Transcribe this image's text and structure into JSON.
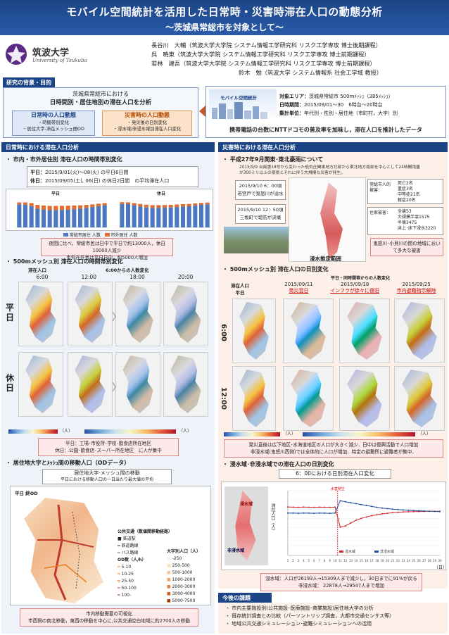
{
  "title": "モバイル空間統計を活用した日常時・災害時滞在人口の動態分析",
  "subtitle": "〜茨城県常総市を対象として〜",
  "logo": {
    "name": "筑波大学",
    "en": "University of Tsukuba"
  },
  "authors": [
    "長谷川　大輔（筑波大学大学院 システム情報工学研究科 リスク工学専攻 博士後期課程）",
    "呉　暁東（筑波大学大学院 システム情報工学研究科 リスク工学専攻 博士前期課程）",
    "若林　建吾（筑波大学大学院 システム情報工学研究科 リスク工学専攻 博士前期課程）",
    "鈴木　勉（筑波大学 システム情報系 社会工学域 教授）"
  ],
  "background": {
    "label": "研究の背景・目的",
    "line1": "茨城県常総市における",
    "line2": "日時間別・居住地別の滞在人口を分析",
    "normal_title": "日常時の人口動態",
    "normal_items": [
      "・時間帯別変化",
      "・居住大字-滞在メッシュ間OD"
    ],
    "disaster_title": "災害時の人口動態",
    "disaster_items": [
      "・発災後の日別変化",
      "・浸水域/非浸水域別滞在人口変化"
    ],
    "app_name": "モバイル空間統計",
    "target_label": "対象エリア：",
    "target_value": "茨城県常総市 500mﾒｯｼｭ（385ﾒｯｼｭ）",
    "period_label": "日時期間：",
    "period_value": "2015/09/01〜30　6時台〜20時台",
    "unit_label": "集計単位：",
    "unit_value": "年代別・性別・居住地（市町村，大字）別",
    "summary": "携帯電話の台数にNTTドコモの普及率を加味し，滞在人口を推計したデータ"
  },
  "left": {
    "section": "日常時における滞在人口分析",
    "b1": "市内・市外居住別 滞在人口の時間帯別変化",
    "weekday_label": "平日：",
    "weekday_value": "2015/9/01(火)〜08(火) の平日6日間",
    "holiday_label": "休日：",
    "holiday_value": "2015/09/05(土), 06(日) の休日2日間",
    "avg": "の平均滞在人口",
    "chart_title_weekday": "平日",
    "chart_title_holiday": "休日",
    "legend_city": "常総市居住 人数",
    "legend_outside": "市外居住 人数",
    "note1a": "夜間に比べ，常総市民は日中で平日で約13000人，休日10000人減少",
    "note1b": "市外在住者は平日日中，約5000人増加",
    "b2": "500mメッシュ別 滞在人口の時間帯別変化",
    "b2_sub_left": "滞在人口",
    "b2_sub_right": "6:00からの人数変化",
    "times": [
      "6:00",
      "12:00",
      "18:00",
      "20:00"
    ],
    "row_weekday": "平日",
    "row_holiday": "休日",
    "unit_people": "（人）",
    "note2a": "平日：工場･市役所･学校･飲食店所在地区",
    "note2b": "休日：公園･飲食店･スーパー所在地区　に人が集中",
    "b3": "居住地大字とﾒｯｼｭ間の移動人口（ODデータ）",
    "b3_box1": "居住地大字-メッシュ間の移動",
    "b3_box2": "平日における移動人口の一日当たり最大値の平均",
    "od_label": "平日 終OD",
    "od_legend_title": "公共交通（数値間移動経路）",
    "od_rail": "鉄道駅",
    "od_line": "鉄道路線",
    "od_bus": "バス路線",
    "od_qty": "OD数（人/h）",
    "od_bins": [
      "5-10",
      "10-25",
      "25-50",
      "50-100",
      "100-"
    ],
    "pop_title": "大字別人口（人）",
    "pop_bins": [
      "-250",
      "250-500",
      "500-1000",
      "1000-2000",
      "2000-3000",
      "3000-4000",
      "5000-7500"
    ],
    "note3a": "市内移動需要の可視化",
    "note3b": "市西側の南北移動，東西の移動を中心に,公共交通空白地域に約2700人の移動"
  },
  "right": {
    "section": "災害時における滞在人口分析",
    "b1": "平成27年9月関東･東北豪雨について",
    "b1_desc": "2015/9/9 台風第18号から変わった低気圧関東地方北部から東北地方南部を中心として24時間雨量が300ミリ以上の豪雨とそれに伴う大規模な災害が発生。",
    "t1": "2015/9/10 6：00頃",
    "t1b": "若宮戸で鬼怒川が溢水",
    "t2": "2015/9/10 12：50頃",
    "t2b": "三坂町で堤防が決壊",
    "damage_label1": "常総市人的被害：",
    "damage1": [
      "死亡2名",
      "重症3名",
      "中等症21名",
      "軽症20名"
    ],
    "damage_label2": "住家被害：",
    "damage2": [
      "全壊53",
      "大規模半壊1575",
      "半壊3475",
      "床上･床下浸水3220"
    ],
    "damage_note": "鬼怒川･小貝川の間の地域において多大な被害",
    "flood_label": "浸水推定範囲",
    "b2": "500mメッシュ別 滞在人口の日別変化",
    "b2_sub": "平日・同時間帯からの人数変化",
    "b2_left": "滞在人口",
    "b2_left2": "平日",
    "days": [
      "2015/09/11",
      "2015/09/18",
      "2015/09/25"
    ],
    "day_desc": [
      "発災翌日",
      "インフラが徐々に復旧",
      "市内避難指示解除"
    ],
    "rows": [
      "6:00",
      "12:00"
    ],
    "unit_people": "（人）",
    "note2a": "発災直後は広下地区･水海道地区の人口が大きく減少．日中は復興活動で人口増加",
    "note2b": "非浸水域(鬼怒川西側)では全体的に人口が増加．特定の避難所に避難者が集中．",
    "b3": "浸水域･非浸水域での滞在人口の日別変化",
    "b3_box": "6：00における日別滞在人口変化",
    "flood_in": "浸水域",
    "flood_out": "非浸水域",
    "ylabel": "滞在人口（人）",
    "xlabel": "（日）",
    "event": "水害発生",
    "series_names": [
      "浸水域",
      "非浸水域"
    ],
    "note3a": "浸水域：人口が26193人→15309人まで減少し，30日までに91%が戻る",
    "note3b": "非浸水域： 22878人→29547人まで増加",
    "future_title": "今後の課題",
    "future": [
      "市内主要施設別(公共施設･医療施設･商業施設)居住地大字の分析",
      "既存統計調査との比較（パーソントリップ調査，大都市交通センサス等）",
      "地域公共交通シミュレーション･避難シミュレーションへの活用"
    ]
  },
  "chart_data": [
    {
      "type": "bar",
      "title": "平日",
      "series": [
        {
          "name": "常総市居住 人数",
          "values": [
            52000,
            51500,
            48000,
            42000,
            40000,
            39000,
            39000,
            39500,
            40000,
            41000,
            42000,
            44000,
            46000,
            48000,
            50000
          ]
        },
        {
          "name": "市外居住 人数",
          "values": [
            4500,
            5000,
            7000,
            9000,
            9500,
            9500,
            9500,
            9300,
            9000,
            8500,
            8000,
            7000,
            6000,
            5500,
            5000
          ]
        }
      ],
      "ylim": [
        0,
        70000
      ]
    },
    {
      "type": "bar",
      "title": "休日",
      "series": [
        {
          "name": "常総市居住 人数",
          "values": [
            53000,
            52500,
            50000,
            47000,
            45000,
            44000,
            44000,
            44500,
            45000,
            46000,
            47000,
            48000,
            49500,
            51000,
            52000
          ]
        },
        {
          "name": "市外居住 人数",
          "values": [
            4000,
            4200,
            5000,
            6000,
            6200,
            6300,
            6300,
            6200,
            6000,
            5800,
            5500,
            5000,
            4700,
            4500,
            4300
          ]
        }
      ],
      "ylim": [
        0,
        70000
      ]
    },
    {
      "type": "line",
      "x": [
        1,
        2,
        3,
        4,
        5,
        6,
        7,
        8,
        9,
        10,
        11,
        12,
        13,
        14,
        15,
        16,
        17,
        18,
        19,
        20,
        21,
        22,
        23,
        24,
        25,
        26,
        27,
        28,
        29,
        30
      ],
      "series": [
        {
          "name": "浸水域",
          "values": [
            26193,
            26100,
            26000,
            26150,
            26050,
            26000,
            26100,
            26050,
            26000,
            26100,
            15309,
            16000,
            17500,
            19000,
            20000,
            20800,
            21500,
            22000,
            22500,
            22800,
            23100,
            23300,
            23500,
            23600,
            23700,
            23750,
            23800,
            23850,
            23850,
            23850
          ]
        },
        {
          "name": "非浸水域",
          "values": [
            22878,
            22900,
            22800,
            22900,
            22850,
            22800,
            22900,
            22850,
            22800,
            22900,
            29547,
            29000,
            28500,
            28000,
            27500,
            27000,
            26500,
            26000,
            25600,
            25300,
            25000,
            24800,
            24600,
            24400,
            24200,
            24100,
            24000,
            23900,
            23800,
            23700
          ]
        }
      ],
      "ylim": [
        0,
        35000
      ]
    }
  ]
}
